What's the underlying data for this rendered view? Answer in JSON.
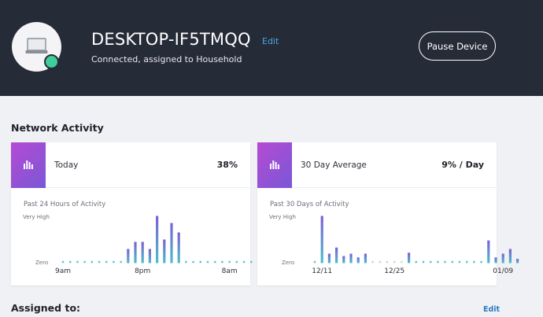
{
  "header": {
    "device_name": "DESKTOP-IF5TMQQ",
    "edit_label": "Edit",
    "status": "Connected, assigned to Household",
    "pause_label": "Pause Device",
    "device_icon": "laptop-icon",
    "status_color": "#3ecf9c"
  },
  "network": {
    "title": "Network Activity",
    "cards": [
      {
        "label": "Today",
        "value": "38%",
        "chart_title": "Past 24 Hours of Activity",
        "y_top": "Very High",
        "y_bottom": "Zero",
        "x_ticks": [
          "9am",
          "8pm",
          "8am"
        ]
      },
      {
        "label": "30 Day Average",
        "value": "9% / Day",
        "chart_title": "Past 30 Days of Activity",
        "y_top": "Very High",
        "y_bottom": "Zero",
        "x_ticks": [
          "12/11",
          "12/25",
          "01/09"
        ]
      }
    ]
  },
  "assigned": {
    "title": "Assigned to:",
    "edit_label": "Edit"
  },
  "colors": {
    "bar_gradient_top": "#7c5fd6",
    "bar_gradient_bottom": "#4dbfc9",
    "zero_dot": "#5bc3cc",
    "zero_dot_faded": "#cfd3da"
  },
  "chart_data": [
    {
      "type": "bar",
      "title": "Past 24 Hours of Activity",
      "y_labels": [
        "Zero",
        "Very High"
      ],
      "ylim": [
        0,
        1
      ],
      "x_tick_labels": [
        "9am",
        "8pm",
        "8am"
      ],
      "values": [
        0,
        0,
        0,
        0,
        0,
        0,
        0,
        0,
        0,
        0.3,
        0.45,
        0.45,
        0.3,
        1.0,
        0.5,
        0.85,
        0.65,
        0,
        0,
        0,
        0,
        0,
        0,
        0,
        0,
        0,
        0,
        0,
        0
      ]
    },
    {
      "type": "bar",
      "title": "Past 30 Days of Activity",
      "y_labels": [
        "Zero",
        "Very High"
      ],
      "ylim": [
        0,
        1
      ],
      "x_tick_labels": [
        "12/11",
        "12/25",
        "01/09"
      ],
      "values": [
        0,
        1.0,
        0.2,
        0.33,
        0.15,
        0.2,
        0.12,
        0.2,
        0,
        0,
        0,
        0,
        0,
        0.22,
        0,
        0,
        0,
        0,
        0,
        0,
        0,
        0,
        0,
        0,
        0.48,
        0.12,
        0.2,
        0.3,
        0.09
      ]
    }
  ]
}
